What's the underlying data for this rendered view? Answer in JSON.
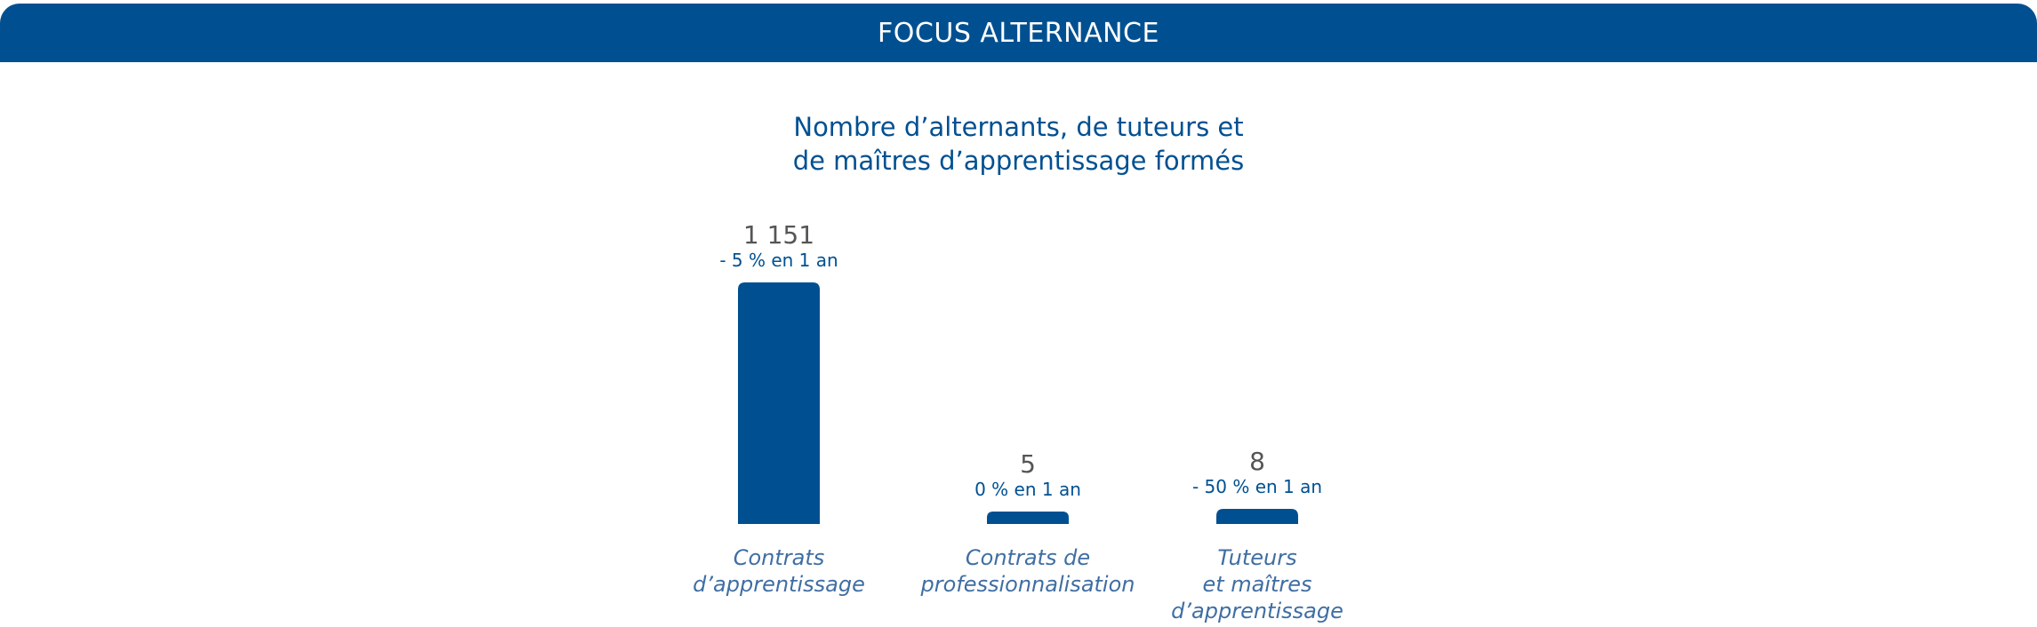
{
  "header": {
    "title": "FOCUS ALTERNANCE"
  },
  "colors": {
    "accent": "#005091",
    "value_text": "#555555",
    "category_text": "#3f6ea3"
  },
  "chart_data": {
    "type": "bar",
    "title": [
      "Nombre d’alternants, de tuteurs et",
      "de maîtres d’apprentissage formés"
    ],
    "categories": [
      [
        "Contrats",
        "d’apprentissage"
      ],
      [
        "Contrats de",
        "professionnalisation"
      ],
      [
        "Tuteurs",
        "et maîtres",
        "d’apprentissage"
      ]
    ],
    "values": [
      1151,
      5,
      8
    ],
    "value_labels": [
      "1 151",
      "5",
      "8"
    ],
    "change_labels": [
      "- 5 % en 1 an",
      "0 % en 1 an",
      "- 50 % en 1 an"
    ],
    "xlabel": "",
    "ylabel": "",
    "grid": false,
    "legend": "none"
  }
}
